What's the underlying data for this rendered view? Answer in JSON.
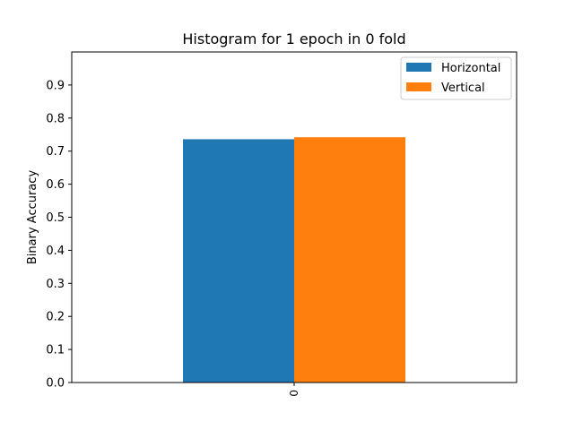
{
  "chart_data": {
    "type": "bar",
    "title": "Histogram for 1 epoch in 0 fold",
    "xlabel": "",
    "ylabel": "Binary Accuracy",
    "categories": [
      "0"
    ],
    "series": [
      {
        "name": "Horizontal",
        "values": [
          0.736
        ],
        "color": "#1f77b4"
      },
      {
        "name": "Vertical",
        "values": [
          0.742
        ],
        "color": "#ff7f0e"
      }
    ],
    "ylim": [
      0,
      1.0
    ],
    "yticks": [
      "0.0",
      "0.1",
      "0.2",
      "0.3",
      "0.4",
      "0.5",
      "0.6",
      "0.7",
      "0.8",
      "0.9"
    ],
    "grid": false,
    "legend_position": "top-right"
  }
}
